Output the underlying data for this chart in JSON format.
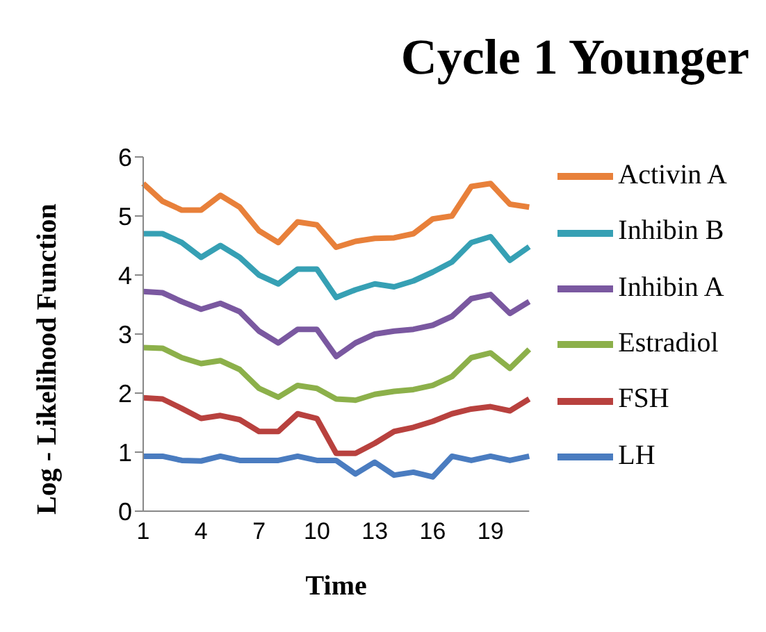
{
  "chart_data": {
    "type": "line",
    "title": "Cycle 1 Younger",
    "xlabel": "Time",
    "ylabel": "Log - Likelihood Function",
    "categories": [
      "1",
      null,
      null,
      "4",
      null,
      null,
      "7",
      null,
      null,
      "10",
      null,
      null,
      "13",
      null,
      null,
      "16",
      null,
      null,
      "19",
      null,
      null
    ],
    "ylim": [
      0,
      6
    ],
    "yticks": [
      0,
      1,
      2,
      3,
      4,
      5,
      6
    ],
    "grid": false,
    "legend": "right",
    "marker": "none",
    "line_style": "solid",
    "series": [
      {
        "name": "Activin A",
        "color": "#e8803a",
        "values": [
          5.55,
          5.25,
          5.1,
          5.1,
          5.35,
          5.15,
          4.75,
          4.55,
          4.9,
          4.85,
          4.47,
          4.57,
          4.62,
          4.63,
          4.7,
          4.95,
          5.0,
          5.5,
          5.55,
          5.2,
          5.15
        ]
      },
      {
        "name": "Inhibin B",
        "color": "#36a0b4",
        "values": [
          4.7,
          4.7,
          4.55,
          4.3,
          4.5,
          4.3,
          4.0,
          3.85,
          4.1,
          4.1,
          3.62,
          3.75,
          3.85,
          3.8,
          3.9,
          4.05,
          4.22,
          4.55,
          4.65,
          4.25,
          4.48
        ]
      },
      {
        "name": "Inhibin A",
        "color": "#7a58a0",
        "values": [
          3.72,
          3.7,
          3.55,
          3.42,
          3.52,
          3.38,
          3.05,
          2.85,
          3.08,
          3.08,
          2.62,
          2.85,
          3.0,
          3.05,
          3.08,
          3.15,
          3.3,
          3.6,
          3.67,
          3.35,
          3.55
        ]
      },
      {
        "name": "Estradiol",
        "color": "#8cb04a",
        "values": [
          2.77,
          2.76,
          2.6,
          2.5,
          2.55,
          2.4,
          2.08,
          1.93,
          2.13,
          2.08,
          1.9,
          1.88,
          1.98,
          2.03,
          2.06,
          2.13,
          2.28,
          2.6,
          2.68,
          2.42,
          2.74
        ]
      },
      {
        "name": "FSH",
        "color": "#b8413e",
        "values": [
          1.92,
          1.9,
          1.74,
          1.57,
          1.62,
          1.55,
          1.35,
          1.35,
          1.65,
          1.57,
          0.98,
          0.98,
          1.15,
          1.35,
          1.42,
          1.52,
          1.65,
          1.73,
          1.77,
          1.7,
          1.9
        ]
      },
      {
        "name": "LH",
        "color": "#4a7cc0",
        "values": [
          0.93,
          0.93,
          0.86,
          0.85,
          0.93,
          0.86,
          0.86,
          0.86,
          0.93,
          0.86,
          0.86,
          0.63,
          0.83,
          0.61,
          0.66,
          0.58,
          0.93,
          0.86,
          0.93,
          0.86,
          0.93
        ]
      }
    ]
  }
}
